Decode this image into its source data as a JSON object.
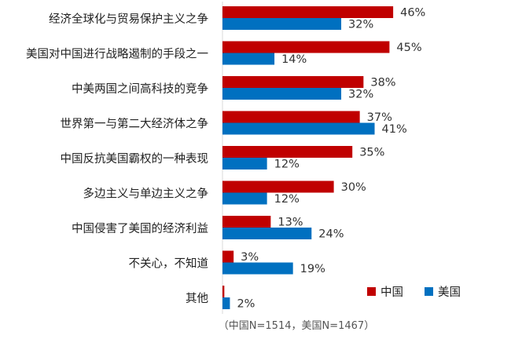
{
  "chart_data": {
    "type": "bar",
    "orientation": "horizontal",
    "categories": [
      "经济全球化与贸易保护主义之争",
      "美国对中国进行战略遏制的手段之一",
      "中美两国之间高科技的竞争",
      "世界第一与第二大经济体之争",
      "中国反抗美国霸权的一种表现",
      "多边主义与单边主义之争",
      "中国侵害了美国的经济利益",
      "不关心，不知道",
      "其他"
    ],
    "series": [
      {
        "name": "中国",
        "color": "#C00000",
        "values": [
          46,
          45,
          38,
          37,
          35,
          30,
          13,
          3,
          0.5
        ],
        "labels": [
          "46%",
          "45%",
          "38%",
          "37%",
          "35%",
          "30%",
          "13%",
          "3%",
          ""
        ]
      },
      {
        "name": "美国",
        "color": "#0070C0",
        "values": [
          32,
          14,
          32,
          41,
          12,
          12,
          24,
          19,
          2
        ],
        "labels": [
          "32%",
          "14%",
          "32%",
          "41%",
          "12%",
          "12%",
          "24%",
          "19%",
          "2%"
        ]
      }
    ],
    "xlim": [
      0,
      50
    ],
    "legend_position": "bottom-right",
    "note": "（中国N=1514，美国N=1467）"
  }
}
